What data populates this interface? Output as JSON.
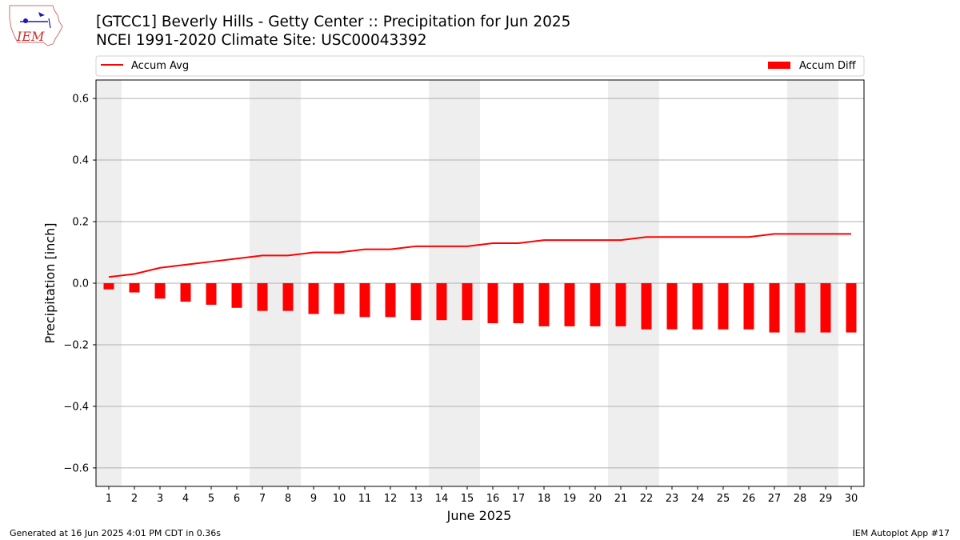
{
  "header": {
    "title_line1": "[GTCC1] Beverly Hills - Getty Center :: Precipitation for Jun 2025",
    "title_line2": "NCEI 1991-2020 Climate Site: USC00043392",
    "logo_text": "IEM"
  },
  "footer": {
    "left": "Generated at 16 Jun 2025 4:01 PM CDT in 0.36s",
    "right": "IEM Autoplot App #17"
  },
  "colors": {
    "series": "#ff0000",
    "weekend_shade": "#eeeeee",
    "grid": "#b0b0b0"
  },
  "chart_data": {
    "type": "bar",
    "xlabel": "June 2025",
    "ylabel": "Precipitation [inch]",
    "ylim": [
      -0.66,
      0.66
    ],
    "yticks": [
      -0.6,
      -0.4,
      -0.2,
      0.0,
      0.2,
      0.4,
      0.6
    ],
    "ytick_labels": [
      "−0.6",
      "−0.4",
      "−0.2",
      "0.0",
      "0.2",
      "0.4",
      "0.6"
    ],
    "grid": "horizontal",
    "legend_placement": "top, above plot",
    "shaded_days": [
      1,
      7,
      8,
      14,
      15,
      21,
      22,
      28,
      29
    ],
    "categories": [
      "1",
      "2",
      "3",
      "4",
      "5",
      "6",
      "7",
      "8",
      "9",
      "10",
      "11",
      "12",
      "13",
      "14",
      "15",
      "16",
      "17",
      "18",
      "19",
      "20",
      "21",
      "22",
      "23",
      "24",
      "25",
      "26",
      "27",
      "28",
      "29",
      "30"
    ],
    "series": [
      {
        "name": "Accum Avg",
        "kind": "line",
        "values": [
          0.02,
          0.03,
          0.05,
          0.06,
          0.07,
          0.08,
          0.09,
          0.09,
          0.1,
          0.1,
          0.11,
          0.11,
          0.12,
          0.12,
          0.12,
          0.13,
          0.13,
          0.14,
          0.14,
          0.14,
          0.14,
          0.15,
          0.15,
          0.15,
          0.15,
          0.15,
          0.16,
          0.16,
          0.16,
          0.16
        ]
      },
      {
        "name": "Accum Diff",
        "kind": "bar",
        "values": [
          -0.02,
          -0.03,
          -0.05,
          -0.06,
          -0.07,
          -0.08,
          -0.09,
          -0.09,
          -0.1,
          -0.1,
          -0.11,
          -0.11,
          -0.12,
          -0.12,
          -0.12,
          -0.13,
          -0.13,
          -0.14,
          -0.14,
          -0.14,
          -0.14,
          -0.15,
          -0.15,
          -0.15,
          -0.15,
          -0.15,
          -0.16,
          -0.16,
          -0.16,
          -0.16
        ]
      }
    ]
  }
}
